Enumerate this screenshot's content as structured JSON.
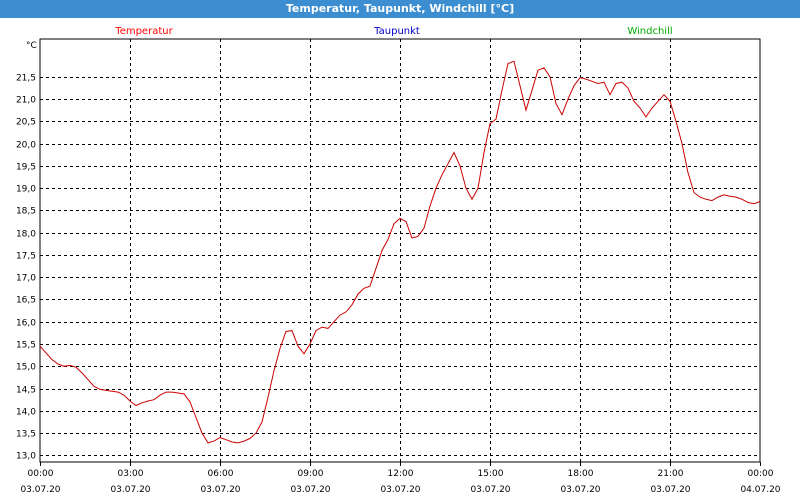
{
  "window": {
    "title": "Temperatur, Taupunkt, Windchill [°C]"
  },
  "chart_data": {
    "type": "line",
    "ylabel": "°C",
    "ylim": [
      12.85,
      22.35
    ],
    "yticks": [
      "13,0",
      "13,5",
      "14,0",
      "14,5",
      "15,0",
      "15,5",
      "16,0",
      "16,5",
      "17,0",
      "17,5",
      "18,0",
      "18,5",
      "19,0",
      "19,5",
      "20,0",
      "20,5",
      "21,0",
      "21,5"
    ],
    "xlim": [
      0,
      24
    ],
    "xticks": [
      {
        "time": "00:00",
        "date": "03.07.20"
      },
      {
        "time": "03:00",
        "date": "03.07.20"
      },
      {
        "time": "06:00",
        "date": "03.07.20"
      },
      {
        "time": "09:00",
        "date": "03.07.20"
      },
      {
        "time": "12:00",
        "date": "03.07.20"
      },
      {
        "time": "15:00",
        "date": "03.07.20"
      },
      {
        "time": "18:00",
        "date": "03.07.20"
      },
      {
        "time": "21:00",
        "date": "03.07.20"
      },
      {
        "time": "00:00",
        "date": "04.07.20"
      }
    ],
    "grid": true,
    "legend": [
      {
        "name": "Temperatur",
        "color": "#ff0000"
      },
      {
        "name": "Taupunkt",
        "color": "#0000cc"
      },
      {
        "name": "Windchill",
        "color": "#00aa00"
      }
    ],
    "series": [
      {
        "name": "Temperatur",
        "color": "#cc0000",
        "points": [
          [
            0.0,
            15.45
          ],
          [
            0.2,
            15.3
          ],
          [
            0.4,
            15.15
          ],
          [
            0.6,
            15.05
          ],
          [
            0.8,
            15.0
          ],
          [
            1.0,
            15.02
          ],
          [
            1.2,
            14.98
          ],
          [
            1.4,
            14.85
          ],
          [
            1.6,
            14.7
          ],
          [
            1.8,
            14.55
          ],
          [
            2.0,
            14.48
          ],
          [
            2.3,
            14.45
          ],
          [
            2.6,
            14.42
          ],
          [
            2.8,
            14.35
          ],
          [
            3.0,
            14.22
          ],
          [
            3.2,
            14.12
          ],
          [
            3.4,
            14.18
          ],
          [
            3.6,
            14.22
          ],
          [
            3.8,
            14.25
          ],
          [
            4.0,
            14.35
          ],
          [
            4.2,
            14.42
          ],
          [
            4.4,
            14.42
          ],
          [
            4.6,
            14.4
          ],
          [
            4.8,
            14.38
          ],
          [
            5.0,
            14.2
          ],
          [
            5.2,
            13.85
          ],
          [
            5.4,
            13.5
          ],
          [
            5.6,
            13.28
          ],
          [
            5.8,
            13.32
          ],
          [
            6.0,
            13.4
          ],
          [
            6.2,
            13.35
          ],
          [
            6.4,
            13.3
          ],
          [
            6.6,
            13.28
          ],
          [
            6.8,
            13.32
          ],
          [
            7.0,
            13.38
          ],
          [
            7.2,
            13.5
          ],
          [
            7.4,
            13.75
          ],
          [
            7.6,
            14.3
          ],
          [
            7.8,
            14.9
          ],
          [
            8.0,
            15.4
          ],
          [
            8.2,
            15.78
          ],
          [
            8.4,
            15.8
          ],
          [
            8.6,
            15.45
          ],
          [
            8.8,
            15.28
          ],
          [
            9.0,
            15.5
          ],
          [
            9.2,
            15.8
          ],
          [
            9.4,
            15.88
          ],
          [
            9.6,
            15.85
          ],
          [
            9.8,
            16.0
          ],
          [
            10.0,
            16.15
          ],
          [
            10.2,
            16.22
          ],
          [
            10.4,
            16.38
          ],
          [
            10.6,
            16.62
          ],
          [
            10.8,
            16.75
          ],
          [
            11.0,
            16.8
          ],
          [
            11.2,
            17.2
          ],
          [
            11.4,
            17.6
          ],
          [
            11.6,
            17.85
          ],
          [
            11.8,
            18.2
          ],
          [
            12.0,
            18.32
          ],
          [
            12.2,
            18.25
          ],
          [
            12.4,
            17.88
          ],
          [
            12.6,
            17.92
          ],
          [
            12.8,
            18.1
          ],
          [
            13.0,
            18.6
          ],
          [
            13.2,
            19.0
          ],
          [
            13.4,
            19.3
          ],
          [
            13.6,
            19.55
          ],
          [
            13.8,
            19.8
          ],
          [
            14.0,
            19.5
          ],
          [
            14.2,
            19.0
          ],
          [
            14.4,
            18.75
          ],
          [
            14.6,
            19.0
          ],
          [
            14.8,
            19.8
          ],
          [
            15.0,
            20.45
          ],
          [
            15.2,
            20.55
          ],
          [
            15.4,
            21.2
          ],
          [
            15.6,
            21.8
          ],
          [
            15.8,
            21.85
          ],
          [
            16.0,
            21.3
          ],
          [
            16.2,
            20.75
          ],
          [
            16.4,
            21.2
          ],
          [
            16.6,
            21.65
          ],
          [
            16.8,
            21.7
          ],
          [
            17.0,
            21.5
          ],
          [
            17.2,
            20.9
          ],
          [
            17.4,
            20.65
          ],
          [
            17.6,
            21.0
          ],
          [
            17.8,
            21.3
          ],
          [
            18.0,
            21.48
          ],
          [
            18.2,
            21.45
          ],
          [
            18.4,
            21.4
          ],
          [
            18.6,
            21.35
          ],
          [
            18.8,
            21.38
          ],
          [
            19.0,
            21.1
          ],
          [
            19.2,
            21.35
          ],
          [
            19.4,
            21.38
          ],
          [
            19.6,
            21.25
          ],
          [
            19.8,
            20.95
          ],
          [
            20.0,
            20.8
          ],
          [
            20.2,
            20.6
          ],
          [
            20.4,
            20.8
          ],
          [
            20.6,
            20.95
          ],
          [
            20.8,
            21.1
          ],
          [
            21.0,
            20.95
          ],
          [
            21.2,
            20.5
          ],
          [
            21.4,
            20.0
          ],
          [
            21.6,
            19.35
          ],
          [
            21.8,
            18.9
          ],
          [
            22.0,
            18.8
          ],
          [
            22.2,
            18.75
          ],
          [
            22.4,
            18.72
          ],
          [
            22.6,
            18.8
          ],
          [
            22.8,
            18.85
          ],
          [
            23.0,
            18.82
          ],
          [
            23.2,
            18.8
          ],
          [
            23.4,
            18.75
          ],
          [
            23.6,
            18.68
          ],
          [
            23.8,
            18.65
          ],
          [
            24.0,
            18.7
          ]
        ]
      }
    ]
  }
}
